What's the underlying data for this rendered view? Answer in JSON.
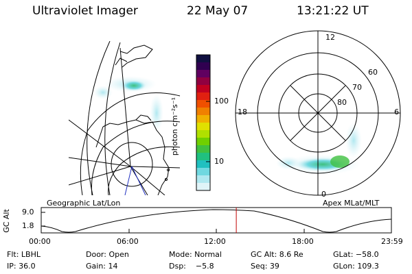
{
  "header": {
    "instrument": "Ultraviolet Imager",
    "date": "22 May 07",
    "time": "13:21:22 UT"
  },
  "colorbar": {
    "unit_label": "photon cm⁻²s⁻¹",
    "ticks": [
      "100",
      "10"
    ],
    "colors": [
      "#101040",
      "#300050",
      "#600060",
      "#900040",
      "#c00020",
      "#e02010",
      "#f05000",
      "#f08000",
      "#f0b000",
      "#e0e000",
      "#b0e000",
      "#70d000",
      "#40c040",
      "#20c080",
      "#20c0c0",
      "#70d8e0",
      "#b0e8f0",
      "#e0f4f8"
    ]
  },
  "polar": {
    "mlt_labels": {
      "top": "12",
      "left": "18",
      "right": "6",
      "bottom": "0"
    },
    "lat_labels": [
      "60",
      "70",
      "80"
    ]
  },
  "timeline": {
    "left_label": "Geographic Lat/Lon",
    "right_label": "Apex MLat/MLT",
    "yaxis_label": "GC Alt",
    "y_ticks": [
      "9.0",
      "1.8"
    ],
    "x_ticks": [
      "00:00",
      "06:00",
      "12:00",
      "18:00",
      "23:59"
    ],
    "current_time_fraction": 0.557
  },
  "footer": {
    "row1": [
      "Flt: LBHL",
      "Door: Open",
      "Mode: Normal",
      "GC Alt: 8.6 Re",
      "GLat: −58.0"
    ],
    "row2": [
      "IP: 36.0",
      "Gain: 14",
      "Dsp:    −5.8",
      "Seq: 39",
      "GLon: 109.3"
    ]
  }
}
